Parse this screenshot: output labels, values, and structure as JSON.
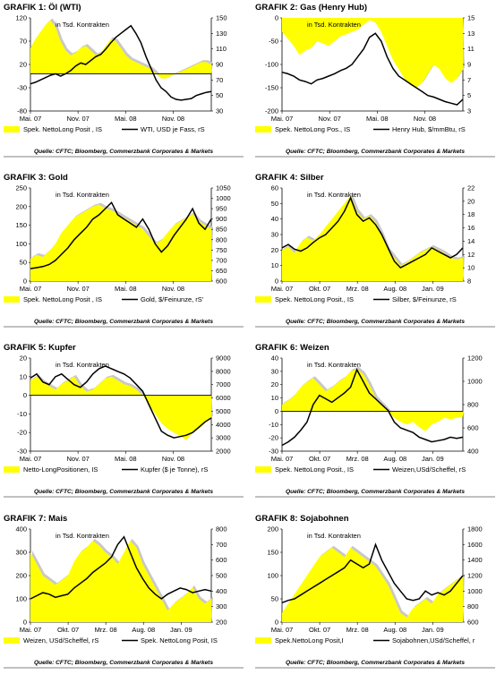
{
  "colors": {
    "fill": "#ffff00",
    "fill_gray": "#c8c8c8",
    "line": "#000000",
    "rule": "#9a9a9a"
  },
  "charts": [
    {
      "prefix": "GRAFIK 1:",
      "name": "Öl (WTI)",
      "inner_label": "in Tsd. Kontrakten",
      "left": {
        "min": -80,
        "max": 120,
        "ticks": [
          120,
          70,
          20,
          -30,
          -80
        ]
      },
      "right": {
        "min": 30,
        "max": 150,
        "ticks": [
          150,
          130,
          110,
          90,
          70,
          50,
          30
        ]
      },
      "x_ticks": [
        "Mai. 07",
        "Nov. 07",
        "Mai. 08",
        "Nov. 08"
      ],
      "zero_line": true,
      "fill_base": 0,
      "legend_area": "Spek. NettoLong Posit , IS",
      "legend_line": "WTI, USD je Fass, rS",
      "source": "Quelle: CFTC; Bloomberg, Commerzbank Corporates & Markets",
      "series_area": [
        55,
        75,
        90,
        105,
        115,
        100,
        70,
        50,
        40,
        45,
        55,
        60,
        50,
        40,
        45,
        60,
        75,
        70,
        55,
        40,
        30,
        25,
        20,
        15,
        10,
        0,
        -10,
        -10,
        -5,
        0,
        5,
        10,
        15,
        20,
        25,
        25,
        20
      ],
      "series_line": [
        65,
        67,
        70,
        73,
        76,
        78,
        75,
        78,
        82,
        88,
        92,
        90,
        95,
        100,
        103,
        110,
        118,
        125,
        130,
        135,
        140,
        130,
        118,
        100,
        85,
        70,
        60,
        55,
        48,
        45,
        44,
        45,
        46,
        50,
        52,
        54,
        55
      ]
    },
    {
      "prefix": "GRAFIK 2:",
      "name": "Gas (Henry Hub)",
      "inner_label": "in Tsd. Kontrakten",
      "left": {
        "min": -200,
        "max": 0,
        "ticks": [
          0,
          -50,
          -100,
          -150,
          -200
        ]
      },
      "right": {
        "min": 3,
        "max": 15,
        "ticks": [
          15,
          13,
          11,
          9,
          7,
          5,
          3
        ]
      },
      "x_ticks": [
        "Mai. 07",
        "Nov. 07",
        "Mai. 08",
        "Nov. 08"
      ],
      "zero_line": false,
      "fill_base": 0,
      "legend_area": "Spek. NettoLong Pos., IS",
      "legend_line": "Henry Hub, $/mmBtu, rS",
      "source": "Quelle: CFTC; Bloomberg, Commerzbank Corporates & Markets",
      "series_area": [
        -30,
        -45,
        -60,
        -80,
        -70,
        -65,
        -50,
        -55,
        -60,
        -50,
        -40,
        -35,
        -30,
        -25,
        -15,
        -5,
        -10,
        -30,
        -60,
        -90,
        -110,
        -130,
        -145,
        -150,
        -140,
        -120,
        -100,
        -110,
        -130,
        -140,
        -130,
        -110
      ],
      "series_line": [
        8,
        7.8,
        7.5,
        7,
        6.8,
        6.5,
        7,
        7.2,
        7.5,
        7.8,
        8.2,
        8.5,
        9,
        10,
        11,
        12.5,
        13,
        12,
        10,
        8.5,
        7.5,
        7,
        6.5,
        6,
        5.5,
        5,
        4.8,
        4.5,
        4.2,
        4,
        3.8,
        4.5
      ]
    },
    {
      "prefix": "GRAFIK 3:",
      "name": "Gold",
      "inner_label": "in Tsd. Kontrakten",
      "left": {
        "min": 0,
        "max": 250,
        "ticks": [
          250,
          200,
          150,
          100,
          50,
          0
        ]
      },
      "right": {
        "min": 600,
        "max": 1050,
        "ticks": [
          1050,
          1000,
          950,
          900,
          850,
          800,
          750,
          700,
          650,
          600
        ]
      },
      "x_ticks": [
        "Mai. 07",
        "Nov. 07",
        "Mai. 08",
        "Nov. 08"
      ],
      "zero_line": false,
      "fill_base": 0,
      "legend_area": "Spek. NettoLong Posit , IS",
      "legend_line": "Gold, $/Feinunze, rS'",
      "source": "Quelle: CFTC; Bloomberg, Commerzbank Corporates & Markets",
      "series_area": [
        60,
        70,
        65,
        80,
        100,
        130,
        150,
        170,
        180,
        190,
        200,
        205,
        195,
        190,
        180,
        170,
        160,
        150,
        140,
        120,
        100,
        110,
        130,
        150,
        160,
        170,
        180,
        160,
        150,
        140
      ],
      "series_line": [
        660,
        665,
        670,
        680,
        700,
        730,
        760,
        800,
        830,
        860,
        900,
        920,
        950,
        980,
        920,
        900,
        880,
        860,
        900,
        850,
        780,
        740,
        770,
        820,
        860,
        900,
        950,
        880,
        850,
        900
      ]
    },
    {
      "prefix": "GRAFIK 4:",
      "name": "Silber",
      "inner_label": "in Tsd. Kontrakten",
      "left": {
        "min": 0,
        "max": 60,
        "ticks": [
          60,
          50,
          40,
          30,
          20,
          10,
          0
        ]
      },
      "right": {
        "min": 8,
        "max": 22,
        "ticks": [
          22,
          20,
          18,
          16,
          14,
          12,
          10,
          8
        ]
      },
      "x_ticks": [
        "Mai. 07",
        "Okt. 07",
        "Mrz. 08",
        "Aug. 08",
        "Jan. 09"
      ],
      "zero_line": false,
      "fill_base": 0,
      "legend_area": "Spek. NettoLong Posit., IS",
      "legend_line": "Silber, $/Feinunze, rS",
      "source": "Quelle: CFTC; Bloomberg, Commerzbank Corporates & Markets",
      "series_area": [
        20,
        22,
        18,
        25,
        28,
        26,
        30,
        35,
        40,
        45,
        50,
        55,
        45,
        40,
        42,
        38,
        30,
        20,
        15,
        10,
        12,
        15,
        18,
        20,
        22,
        20,
        18,
        15,
        14,
        15
      ],
      "series_line": [
        13,
        13.5,
        12.8,
        12.5,
        13,
        13.8,
        14.5,
        15,
        16,
        17,
        18.5,
        20.5,
        18,
        17,
        17.5,
        16.5,
        15,
        13,
        11,
        10,
        10.5,
        11,
        11.5,
        12,
        13,
        12.5,
        12,
        11.5,
        12,
        13
      ]
    },
    {
      "prefix": "GRAFIK 5:",
      "name": "Kupfer",
      "inner_label": "in Tsd. Kontrakten",
      "left": {
        "min": -30,
        "max": 20,
        "ticks": [
          20,
          10,
          0,
          -10,
          -20,
          -30
        ]
      },
      "right": {
        "min": 2000,
        "max": 9000,
        "ticks": [
          9000,
          8000,
          7000,
          6000,
          5000,
          4000,
          3000,
          2000
        ]
      },
      "x_ticks": [
        "Mai. 07",
        "Nov. 07",
        "Mai. 08",
        "Nov. 08"
      ],
      "zero_line": true,
      "fill_base": 0,
      "legend_area": "Netto-LongPositionen, IS",
      "legend_line": "Kupfer ($ je Tonne), rS",
      "source": "Quelle: CFTC; Bloomberg, Commerzbank Corporates & Markets",
      "series_area": [
        8,
        10,
        7,
        5,
        3,
        6,
        8,
        10,
        5,
        2,
        3,
        6,
        9,
        10,
        8,
        6,
        5,
        3,
        0,
        -5,
        -10,
        -15,
        -18,
        -20,
        -22,
        -24,
        -20,
        -18,
        -15,
        -12
      ],
      "series_line": [
        7500,
        7800,
        7200,
        7000,
        7600,
        7800,
        7400,
        7000,
        6800,
        7200,
        7800,
        8200,
        8400,
        8200,
        8000,
        7800,
        7500,
        7000,
        6500,
        5500,
        4500,
        3500,
        3200,
        3000,
        3100,
        3200,
        3400,
        3800,
        4200,
        4500
      ]
    },
    {
      "prefix": "GRAFIK 6:",
      "name": "Weizen",
      "inner_label": "in Tsd. Kontrakten",
      "left": {
        "min": -30,
        "max": 40,
        "ticks": [
          40,
          30,
          20,
          10,
          0,
          -10,
          -20,
          -30
        ]
      },
      "right": {
        "min": 400,
        "max": 1200,
        "ticks": [
          1200,
          1000,
          800,
          600,
          400
        ]
      },
      "x_ticks": [
        "Mai. 07",
        "Okt. 07",
        "Mrz. 08",
        "Aug. 08",
        "Jan. 09"
      ],
      "zero_line": true,
      "fill_base": 0,
      "legend_area": "Spek. NettoLong Posit., IS",
      "legend_line": "Weizen,USd/Scheffel, rS",
      "source": "Quelle: CFTC; Bloomberg, Commerzbank Corporates & Markets",
      "series_area": [
        5,
        8,
        12,
        18,
        22,
        25,
        20,
        15,
        18,
        22,
        25,
        30,
        32,
        28,
        20,
        10,
        5,
        0,
        -5,
        -8,
        -10,
        -8,
        -12,
        -15,
        -10,
        -8,
        -5,
        -6,
        -5,
        -4
      ],
      "series_line": [
        450,
        480,
        520,
        580,
        650,
        800,
        880,
        850,
        820,
        860,
        900,
        950,
        1100,
        1000,
        900,
        850,
        800,
        750,
        650,
        600,
        580,
        560,
        520,
        500,
        480,
        490,
        500,
        520,
        510,
        520
      ]
    },
    {
      "prefix": "GRAFIK 7:",
      "name": "Mais",
      "inner_label": "in Tsd. Kontrakten",
      "left": {
        "min": 0,
        "max": 400,
        "ticks": [
          400,
          300,
          200,
          100,
          0
        ]
      },
      "right": {
        "min": 200,
        "max": 800,
        "ticks": [
          800,
          700,
          600,
          500,
          400,
          300,
          200
        ]
      },
      "x_ticks": [
        "Mai. 07",
        "Okt. 07",
        "Mrz. 08",
        "Aug. 08",
        "Jan. 09"
      ],
      "zero_line": false,
      "fill_base": 0,
      "legend_area": "Weizen, USd/Scheffel, rS",
      "legend_line": "Spek. NettoLong Posit, IS",
      "source": "Quelle: CFTC; Bloomberg, Commerzbank Corporates & Markets",
      "series_area": [
        300,
        250,
        200,
        180,
        160,
        180,
        200,
        260,
        300,
        320,
        350,
        330,
        300,
        280,
        250,
        300,
        350,
        320,
        250,
        200,
        150,
        100,
        50,
        80,
        100,
        120,
        150,
        100,
        80,
        100
      ],
      "series_line": [
        350,
        370,
        390,
        380,
        360,
        370,
        380,
        420,
        450,
        480,
        520,
        550,
        580,
        620,
        700,
        750,
        650,
        550,
        480,
        420,
        380,
        350,
        380,
        400,
        420,
        410,
        390,
        400,
        410,
        400
      ]
    },
    {
      "prefix": "GRAFIK 8:",
      "name": "Sojabohnen",
      "inner_label": "in Tsd. Kontrakten",
      "left": {
        "min": 0,
        "max": 200,
        "ticks": [
          200,
          150,
          100,
          50,
          0
        ]
      },
      "right": {
        "min": 600,
        "max": 1800,
        "ticks": [
          1800,
          1600,
          1400,
          1200,
          1000,
          800,
          600
        ]
      },
      "x_ticks": [
        "Mai. 07",
        "Okt. 07",
        "Mrz. 08",
        "Aug. 08",
        "Jan. 09"
      ],
      "zero_line": false,
      "fill_base": 0,
      "legend_area": "Spek.NettoLong Posit,I",
      "legend_line": "Sojabohnen,USd/Scheffel, r",
      "source": "Quelle: CFTC; Bloomberg, Commerzbank Corporates & Markets",
      "series_area": [
        20,
        40,
        60,
        80,
        100,
        120,
        140,
        150,
        160,
        150,
        140,
        160,
        150,
        140,
        130,
        120,
        100,
        80,
        50,
        20,
        10,
        30,
        40,
        50,
        40,
        60,
        70,
        80,
        90,
        100
      ],
      "series_line": [
        850,
        880,
        900,
        950,
        1000,
        1050,
        1100,
        1150,
        1200,
        1250,
        1300,
        1400,
        1350,
        1300,
        1350,
        1600,
        1400,
        1250,
        1100,
        1000,
        900,
        880,
        900,
        1000,
        950,
        980,
        950,
        1000,
        1100,
        1200
      ]
    }
  ]
}
